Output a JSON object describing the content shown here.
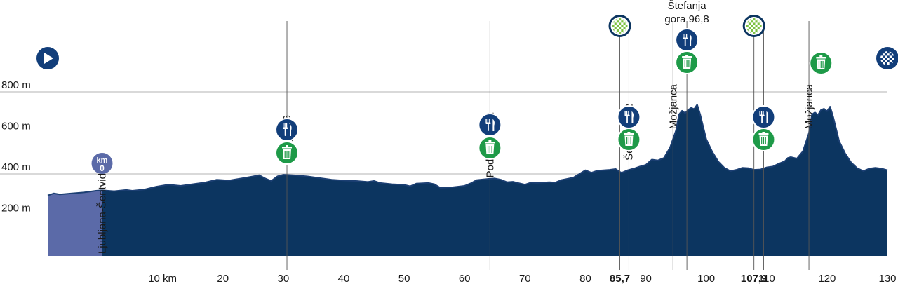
{
  "chart_data": {
    "type": "area",
    "title": "",
    "xlabel": "",
    "ylabel": "",
    "xlim": [
      -9,
      130
    ],
    "ylim": [
      0,
      1000
    ],
    "x_ticks": [
      {
        "value": 10,
        "label": "10 km",
        "bold": false
      },
      {
        "value": 20,
        "label": "20",
        "bold": false
      },
      {
        "value": 30,
        "label": "30",
        "bold": false
      },
      {
        "value": 40,
        "label": "40",
        "bold": false
      },
      {
        "value": 50,
        "label": "50",
        "bold": false
      },
      {
        "value": 60,
        "label": "60",
        "bold": false
      },
      {
        "value": 70,
        "label": "70",
        "bold": false
      },
      {
        "value": 80,
        "label": "80",
        "bold": false
      },
      {
        "value": 85.7,
        "label": "85,7",
        "bold": true
      },
      {
        "value": 90,
        "label": "90",
        "bold": false
      },
      {
        "value": 100,
        "label": "100",
        "bold": false
      },
      {
        "value": 107.9,
        "label": "107,9",
        "bold": true
      },
      {
        "value": 110,
        "label": "110",
        "bold": false
      },
      {
        "value": 120,
        "label": "120",
        "bold": false
      },
      {
        "value": 130,
        "label": "130",
        "bold": false
      }
    ],
    "y_ticks": [
      {
        "value": 200,
        "label": "200 m"
      },
      {
        "value": 400,
        "label": "400 m"
      },
      {
        "value": 600,
        "label": "600 m"
      },
      {
        "value": 800,
        "label": "800 m"
      }
    ],
    "neutral_end_km": 0,
    "colors": {
      "neutral": "#5b6aa8",
      "route_top": "#7cc242",
      "route_bottom": "#0c3560",
      "outline": "#1c3f73",
      "feed": "#123e7a",
      "waste": "#1e9a48",
      "sprint": "#7cc242",
      "grid": "#9a9a9a"
    },
    "profile": [
      [
        -9,
        295
      ],
      [
        -8,
        305
      ],
      [
        -7,
        300
      ],
      [
        -5,
        305
      ],
      [
        -3,
        310
      ],
      [
        -1,
        318
      ],
      [
        0,
        320
      ],
      [
        2,
        316
      ],
      [
        4,
        322
      ],
      [
        5,
        318
      ],
      [
        7,
        324
      ],
      [
        9,
        338
      ],
      [
        11,
        348
      ],
      [
        13,
        342
      ],
      [
        15,
        350
      ],
      [
        17,
        358
      ],
      [
        19,
        372
      ],
      [
        21,
        368
      ],
      [
        23,
        378
      ],
      [
        25,
        388
      ],
      [
        26,
        394
      ],
      [
        27,
        378
      ],
      [
        28,
        366
      ],
      [
        29,
        388
      ],
      [
        30,
        396
      ],
      [
        32,
        393
      ],
      [
        34,
        388
      ],
      [
        36,
        380
      ],
      [
        38,
        372
      ],
      [
        40,
        368
      ],
      [
        42,
        366
      ],
      [
        44,
        361
      ],
      [
        45,
        366
      ],
      [
        46,
        356
      ],
      [
        48,
        350
      ],
      [
        50,
        347
      ],
      [
        51,
        340
      ],
      [
        52,
        353
      ],
      [
        54,
        356
      ],
      [
        55,
        350
      ],
      [
        56,
        332
      ],
      [
        58,
        335
      ],
      [
        60,
        342
      ],
      [
        61,
        354
      ],
      [
        62,
        370
      ],
      [
        64,
        376
      ],
      [
        65,
        378
      ],
      [
        66,
        372
      ],
      [
        67,
        360
      ],
      [
        68,
        362
      ],
      [
        69,
        355
      ],
      [
        70,
        348
      ],
      [
        71,
        358
      ],
      [
        72,
        356
      ],
      [
        74,
        360
      ],
      [
        75,
        358
      ],
      [
        76,
        370
      ],
      [
        78,
        382
      ],
      [
        79,
        400
      ],
      [
        80,
        418
      ],
      [
        81,
        406
      ],
      [
        82,
        416
      ],
      [
        84,
        420
      ],
      [
        85,
        424
      ],
      [
        85.7,
        410
      ],
      [
        86,
        406
      ],
      [
        87,
        418
      ],
      [
        88,
        426
      ],
      [
        89,
        436
      ],
      [
        90,
        444
      ],
      [
        91,
        470
      ],
      [
        92,
        466
      ],
      [
        93,
        478
      ],
      [
        94,
        528
      ],
      [
        95,
        612
      ],
      [
        95.5,
        690
      ],
      [
        96,
        708
      ],
      [
        96.5,
        696
      ],
      [
        97,
        712
      ],
      [
        97.5,
        722
      ],
      [
        98,
        716
      ],
      [
        98.5,
        738
      ],
      [
        99,
        690
      ],
      [
        99.5,
        630
      ],
      [
        100,
        570
      ],
      [
        101,
        508
      ],
      [
        102,
        460
      ],
      [
        103,
        430
      ],
      [
        104,
        414
      ],
      [
        105,
        420
      ],
      [
        106,
        430
      ],
      [
        107,
        428
      ],
      [
        107.9,
        420
      ],
      [
        109,
        422
      ],
      [
        110,
        432
      ],
      [
        111,
        436
      ],
      [
        112,
        450
      ],
      [
        113,
        462
      ],
      [
        113.5,
        478
      ],
      [
        114,
        482
      ],
      [
        115,
        475
      ],
      [
        116,
        510
      ],
      [
        117,
        600
      ],
      [
        117.5,
        690
      ],
      [
        118,
        700
      ],
      [
        118.5,
        688
      ],
      [
        119,
        712
      ],
      [
        119.5,
        718
      ],
      [
        120,
        706
      ],
      [
        120.5,
        728
      ],
      [
        121,
        680
      ],
      [
        121.5,
        620
      ],
      [
        122,
        560
      ],
      [
        123,
        500
      ],
      [
        124,
        455
      ],
      [
        125,
        428
      ],
      [
        126,
        414
      ],
      [
        127,
        426
      ],
      [
        128,
        430
      ],
      [
        129,
        426
      ],
      [
        130,
        418
      ]
    ],
    "towns": [
      {
        "x": 0,
        "label": "Ljubljana-Šentvid 0.0",
        "placement": "vertical",
        "label_top": 60,
        "label_bottom": 222
      },
      {
        "x": 30.6,
        "label": "Kranj 30,6",
        "placement": "vertical",
        "label_top": 92,
        "label_bottom": 164
      },
      {
        "x": 64.2,
        "label": "Podgorje 64,2",
        "placement": "vertical",
        "label_top": 62,
        "label_bottom": 160
      },
      {
        "x": 87.2,
        "label": "Šenčur 87,2",
        "placement": "vertical",
        "label_top": 60,
        "label_bottom": 148
      },
      {
        "x": 94.5,
        "label": "Možjanca",
        "placement": "vertical",
        "label_top": 54,
        "label_bottom": 120
      },
      {
        "x": 96.8,
        "label": "Štefanja",
        "label2": "gora 96,8",
        "placement": "horizontal",
        "label_top": 8
      },
      {
        "x": 117,
        "label": "Možjanca",
        "placement": "vertical",
        "label_top": 54,
        "label_bottom": 120
      }
    ],
    "markers": [
      {
        "x": -9,
        "type": "start",
        "cy": 83
      },
      {
        "x": 130,
        "type": "finish",
        "cy": 83
      },
      {
        "x": 85.7,
        "type": "sprint",
        "cy": 37
      },
      {
        "x": 107.9,
        "type": "sprint",
        "cy": 37
      },
      {
        "x": 96.8,
        "type": "feed",
        "cy": 57
      },
      {
        "x": 96.8,
        "type": "waste",
        "cy": 89
      },
      {
        "x": 30.6,
        "type": "feed",
        "cy": 185
      },
      {
        "x": 30.6,
        "type": "waste",
        "cy": 218
      },
      {
        "x": 64.2,
        "type": "feed",
        "cy": 178
      },
      {
        "x": 64.2,
        "type": "waste",
        "cy": 211
      },
      {
        "x": 87.2,
        "type": "feed",
        "cy": 167
      },
      {
        "x": 87.2,
        "type": "waste",
        "cy": 199
      },
      {
        "x": 109.5,
        "type": "feed",
        "cy": 167
      },
      {
        "x": 109.5,
        "type": "waste",
        "cy": 199
      },
      {
        "x": 119,
        "type": "waste",
        "cy": 90
      },
      {
        "x": 0,
        "type": "km0",
        "cy": 233,
        "label": "km",
        "value": "0"
      }
    ]
  }
}
